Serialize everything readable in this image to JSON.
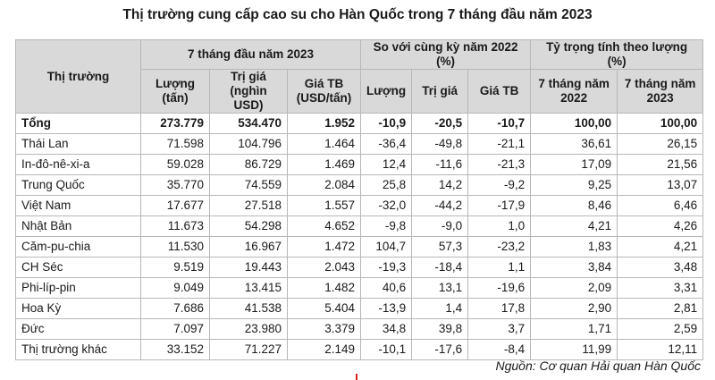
{
  "title": "Thị trường cung cấp cao su cho Hàn Quốc trong 7 tháng đầu năm 2023",
  "header": {
    "market": "Thị trường",
    "group1": "7 tháng đầu năm 2023",
    "group2": "So với cùng kỳ năm 2022 (%)",
    "group3": "Tỷ trọng tính theo lượng (%)",
    "c1": "Lượng (tấn)",
    "c2": "Trị giá (nghìn USD)",
    "c3": "Giá TB (USD/tấn)",
    "c4": "Lượng",
    "c5": "Trị giá",
    "c6": "Giá TB",
    "c7": "7 tháng năm 2022",
    "c8": "7 tháng năm 2023"
  },
  "rows": [
    {
      "name": "Tổng",
      "v": [
        "273.779",
        "534.470",
        "1.952",
        "-10,9",
        "-20,5",
        "-10,7",
        "100,00",
        "100,00"
      ]
    },
    {
      "name": "Thái Lan",
      "v": [
        "71.598",
        "104.796",
        "1.464",
        "-36,4",
        "-49,8",
        "-21,1",
        "36,61",
        "26,15"
      ]
    },
    {
      "name": "In-đô-nê-xi-a",
      "v": [
        "59.028",
        "86.729",
        "1.469",
        "12,4",
        "-11,6",
        "-21,3",
        "17,09",
        "21,56"
      ]
    },
    {
      "name": "Trung Quốc",
      "v": [
        "35.770",
        "74.559",
        "2.084",
        "25,8",
        "14,2",
        "-9,2",
        "9,25",
        "13,07"
      ]
    },
    {
      "name": "Việt Nam",
      "v": [
        "17.677",
        "27.518",
        "1.557",
        "-32,0",
        "-44,2",
        "-17,9",
        "8,46",
        "6,46"
      ]
    },
    {
      "name": "Nhật  Bản",
      "v": [
        "11.673",
        "54.298",
        "4.652",
        "-9,8",
        "-9,0",
        "1,0",
        "4,21",
        "4,26"
      ]
    },
    {
      "name": "Căm-pu-chia",
      "v": [
        "11.530",
        "16.967",
        "1.472",
        "104,7",
        "57,3",
        "-23,2",
        "1,83",
        "4,21"
      ]
    },
    {
      "name": "CH Séc",
      "v": [
        "9.519",
        "19.443",
        "2.043",
        "-19,3",
        "-18,4",
        "1,1",
        "3,84",
        "3,48"
      ]
    },
    {
      "name": "Phi-líp-pin",
      "v": [
        "9.049",
        "13.415",
        "1.482",
        "40,6",
        "13,1",
        "-19,6",
        "2,09",
        "3,31"
      ]
    },
    {
      "name": "Hoa Kỳ",
      "v": [
        "7.686",
        "41.538",
        "5.404",
        "-13,9",
        "1,4",
        "17,8",
        "2,90",
        "2,81"
      ]
    },
    {
      "name": "Đức",
      "v": [
        "7.097",
        "23.980",
        "3.379",
        "34,8",
        "39,8",
        "3,7",
        "1,71",
        "2,59"
      ]
    },
    {
      "name": "Thị trường khác",
      "v": [
        "33.152",
        "71.227",
        "2.149",
        "-10,1",
        "-17,6",
        "-8,4",
        "11,99",
        "12,11"
      ]
    }
  ],
  "source": "Nguồn: Cơ quan Hải quan Hàn Quốc"
}
